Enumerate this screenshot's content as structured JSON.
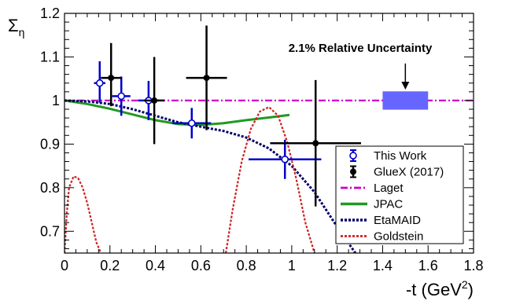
{
  "chart_data": {
    "type": "scatter",
    "xlabel_main": "-t (GeV",
    "xlabel_sup": "2",
    "xlabel_tail": ")",
    "ylabel_main": "Σ",
    "ylabel_sub": "η",
    "xlim": [
      0,
      1.8
    ],
    "ylim": [
      0.65,
      1.2
    ],
    "xticks": [
      "0",
      "0.2",
      "0.4",
      "0.6",
      "0.8",
      "1",
      "1.2",
      "1.4",
      "1.6",
      "1.8"
    ],
    "yticks": [
      "0.7",
      "0.8",
      "0.9",
      "1",
      "1.1",
      "1.2"
    ],
    "xtick_values": [
      0,
      0.2,
      0.4,
      0.6,
      0.8,
      1.0,
      1.2,
      1.4,
      1.6,
      1.8
    ],
    "ytick_values": [
      0.7,
      0.8,
      0.9,
      1.0,
      1.1,
      1.2
    ],
    "annotation": {
      "text": "2.1% Relative Uncertainty",
      "arrow_x": 1.5,
      "arrow_from_y": 1.085,
      "arrow_to_y": 1.025,
      "box_x": [
        1.4,
        1.6
      ],
      "box_y": [
        0.979,
        1.021
      ],
      "box_color": "#6666ff"
    },
    "series": [
      {
        "name": "This Work",
        "kind": "points",
        "marker": "open-circle",
        "color": "#0000cc",
        "points": [
          {
            "x": 0.155,
            "y": 1.04,
            "xerr": [
              0.025,
              0.025
            ],
            "yerr": [
              0.045,
              0.05
            ]
          },
          {
            "x": 0.25,
            "y": 1.01,
            "xerr": [
              0.04,
              0.04
            ],
            "yerr": [
              0.045,
              0.045
            ]
          },
          {
            "x": 0.37,
            "y": 1.0,
            "xerr": [
              0.045,
              0.045
            ],
            "yerr": [
              0.045,
              0.045
            ]
          },
          {
            "x": 0.56,
            "y": 0.948,
            "xerr": [
              0.085,
              0.085
            ],
            "yerr": [
              0.035,
              0.035
            ]
          },
          {
            "x": 0.97,
            "y": 0.865,
            "xerr": [
              0.16,
              0.16
            ],
            "yerr": [
              0.045,
              0.045
            ]
          }
        ]
      },
      {
        "name": "GlueX (2017)",
        "kind": "points",
        "marker": "filled-circle",
        "color": "#000000",
        "points": [
          {
            "x": 0.205,
            "y": 1.052,
            "xerr": [
              0.045,
              0.045
            ],
            "yerr": [
              0.065,
              0.08
            ]
          },
          {
            "x": 0.395,
            "y": 1.0,
            "xerr": [
              0.045,
              0.045
            ],
            "yerr": [
              0.1,
              0.1
            ]
          },
          {
            "x": 0.625,
            "y": 1.052,
            "xerr": [
              0.09,
              0.09
            ],
            "yerr": [
              0.12,
              0.12
            ]
          },
          {
            "x": 1.105,
            "y": 0.902,
            "xerr": [
              0.2,
              0.2
            ],
            "yerr": [
              0.145,
              0.145
            ]
          }
        ]
      },
      {
        "name": "Laget",
        "kind": "line",
        "style": "dash-dot",
        "color": "#cc00cc",
        "x": [
          0.0,
          1.8
        ],
        "y": [
          1.0,
          1.0
        ]
      },
      {
        "name": "JPAC",
        "kind": "line",
        "style": "solid",
        "color": "#229922",
        "x": [
          0.0,
          0.1,
          0.2,
          0.3,
          0.4,
          0.5,
          0.6,
          0.7,
          0.8,
          0.9,
          0.99
        ],
        "y": [
          1.0,
          0.992,
          0.981,
          0.968,
          0.955,
          0.946,
          0.944,
          0.948,
          0.955,
          0.961,
          0.967
        ]
      },
      {
        "name": "EtaMAID",
        "kind": "line",
        "style": "dotted",
        "color": "#000066",
        "x": [
          0.0,
          0.1,
          0.2,
          0.3,
          0.4,
          0.5,
          0.6,
          0.7,
          0.8,
          0.9,
          1.0,
          1.1,
          1.2,
          1.28
        ],
        "y": [
          1.0,
          0.998,
          0.992,
          0.98,
          0.965,
          0.95,
          0.94,
          0.93,
          0.915,
          0.89,
          0.85,
          0.79,
          0.71,
          0.65
        ]
      },
      {
        "name": "Goldstein",
        "kind": "line",
        "style": "dotted",
        "color": "#cc2222",
        "segments": [
          {
            "x": [
              0.0,
              0.01,
              0.02,
              0.04,
              0.06,
              0.08,
              0.1,
              0.12,
              0.14,
              0.16
            ],
            "y": [
              0.65,
              0.74,
              0.8,
              0.826,
              0.822,
              0.8,
              0.765,
              0.72,
              0.675,
              0.65
            ]
          },
          {
            "x": [
              0.71,
              0.74,
              0.78,
              0.82,
              0.86,
              0.9,
              0.94,
              0.98,
              1.02,
              1.06,
              1.1
            ],
            "y": [
              0.65,
              0.75,
              0.86,
              0.935,
              0.975,
              0.985,
              0.965,
              0.905,
              0.82,
              0.72,
              0.65
            ]
          }
        ]
      }
    ]
  }
}
